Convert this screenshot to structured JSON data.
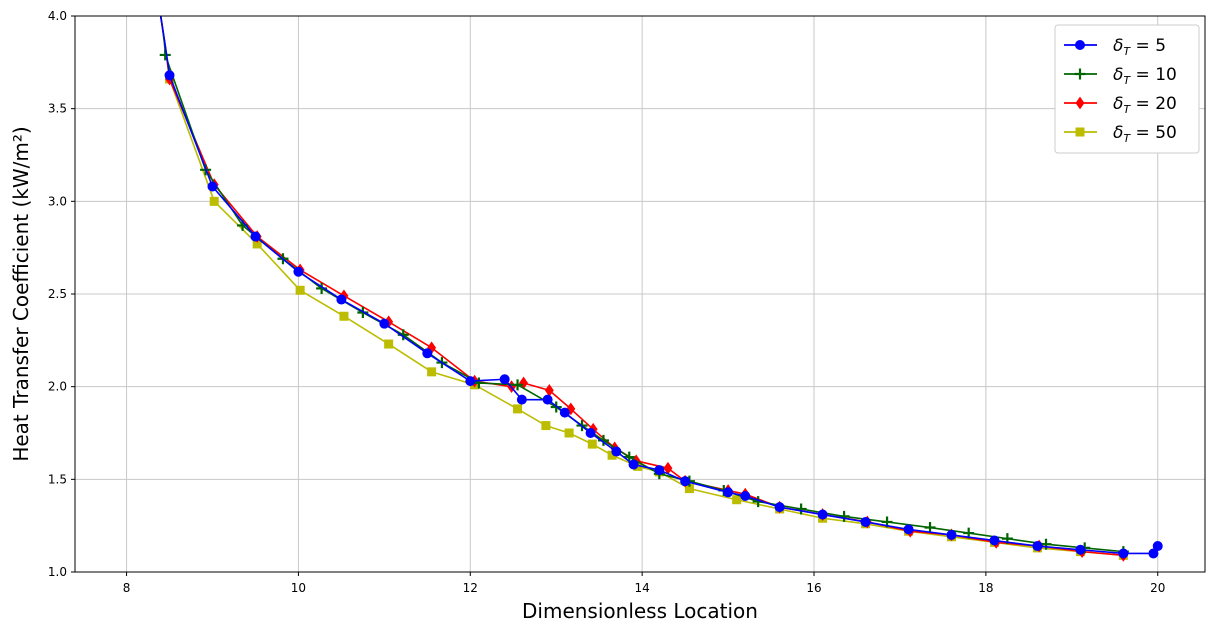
{
  "chart_data": {
    "type": "line",
    "title": "",
    "xlabel": "Dimensionless Location",
    "ylabel": "Heat Transfer Coefficient (kW/m²)",
    "xlim": [
      7.4,
      20.55
    ],
    "ylim": [
      1.0,
      4.0
    ],
    "xticks": [
      8,
      10,
      12,
      14,
      16,
      18,
      20
    ],
    "yticks": [
      1.0,
      1.5,
      2.0,
      2.5,
      3.0,
      3.5,
      4.0
    ],
    "xtick_labels": [
      "8",
      "10",
      "12",
      "14",
      "16",
      "18",
      "20"
    ],
    "ytick_labels": [
      "1.0",
      "1.5",
      "2.0",
      "2.5",
      "3.0",
      "3.5",
      "4.0"
    ],
    "grid": true,
    "legend_position": "top-right",
    "series": [
      {
        "name": "δ_T = 5",
        "legend_base": "δ",
        "legend_sub": "T",
        "legend_value": " = 5",
        "color": "#0000ff",
        "marker": "circle",
        "x": [
          8.5,
          9.0,
          9.5,
          10.0,
          10.5,
          11.0,
          11.5,
          12.0,
          12.4,
          12.6,
          12.9,
          13.1,
          13.4,
          13.7,
          13.9,
          14.2,
          14.5,
          15.0,
          15.2,
          15.6,
          16.1,
          16.6,
          17.1,
          17.6,
          18.1,
          18.6,
          19.1,
          19.6,
          19.95,
          20.0
        ],
        "y": [
          3.68,
          3.08,
          2.81,
          2.62,
          2.47,
          2.34,
          2.18,
          2.03,
          2.04,
          1.93,
          1.93,
          1.86,
          1.75,
          1.65,
          1.58,
          1.55,
          1.49,
          1.43,
          1.41,
          1.35,
          1.31,
          1.27,
          1.23,
          1.2,
          1.17,
          1.14,
          1.12,
          1.1,
          1.1,
          1.14
        ]
      },
      {
        "name": "δ_T = 10",
        "legend_base": "δ",
        "legend_sub": "T",
        "legend_value": " = 10",
        "color": "#006400",
        "marker": "plus",
        "x": [
          8.45,
          8.92,
          9.35,
          9.82,
          10.27,
          10.75,
          11.22,
          11.67,
          12.1,
          12.55,
          13.0,
          13.3,
          13.55,
          13.85,
          14.2,
          14.55,
          14.95,
          15.35,
          15.85,
          16.35,
          16.85,
          17.35,
          17.8,
          18.25,
          18.7,
          19.15,
          19.6
        ],
        "y": [
          3.79,
          3.17,
          2.87,
          2.69,
          2.53,
          2.4,
          2.28,
          2.13,
          2.02,
          2.01,
          1.89,
          1.79,
          1.71,
          1.62,
          1.53,
          1.49,
          1.44,
          1.38,
          1.34,
          1.3,
          1.27,
          1.24,
          1.21,
          1.18,
          1.15,
          1.13,
          1.11
        ]
      },
      {
        "name": "δ_T = 20",
        "legend_base": "δ",
        "legend_sub": "T",
        "legend_value": " = 20",
        "color": "#ff0000",
        "marker": "diamond",
        "x": [
          8.5,
          9.02,
          9.52,
          10.02,
          10.53,
          11.05,
          11.55,
          12.05,
          12.48,
          12.62,
          12.92,
          13.17,
          13.43,
          13.68,
          13.93,
          14.3,
          14.5,
          15.0,
          15.2,
          15.6,
          16.1,
          16.62,
          17.12,
          17.6,
          18.12,
          18.62,
          19.12,
          19.6
        ],
        "y": [
          3.66,
          3.09,
          2.81,
          2.63,
          2.49,
          2.35,
          2.21,
          2.03,
          2.0,
          2.02,
          1.98,
          1.88,
          1.77,
          1.67,
          1.6,
          1.56,
          1.49,
          1.44,
          1.42,
          1.35,
          1.31,
          1.27,
          1.22,
          1.2,
          1.16,
          1.14,
          1.11,
          1.09
        ]
      },
      {
        "name": "δ_T = 50",
        "legend_base": "δ",
        "legend_sub": "T",
        "legend_value": " = 50",
        "color": "#bcbc00",
        "marker": "square",
        "x": [
          8.5,
          9.02,
          9.52,
          10.02,
          10.53,
          11.05,
          11.55,
          12.05,
          12.55,
          12.88,
          13.15,
          13.42,
          13.65,
          13.95,
          14.2,
          14.55,
          15.1,
          15.6,
          16.1,
          16.6,
          17.1,
          17.6,
          18.1,
          18.6,
          19.1,
          19.6
        ],
        "y": [
          3.66,
          3.0,
          2.77,
          2.52,
          2.38,
          2.23,
          2.08,
          2.01,
          1.88,
          1.79,
          1.75,
          1.69,
          1.63,
          1.57,
          1.54,
          1.45,
          1.39,
          1.34,
          1.29,
          1.26,
          1.22,
          1.19,
          1.16,
          1.13,
          1.11,
          1.09
        ]
      }
    ]
  }
}
